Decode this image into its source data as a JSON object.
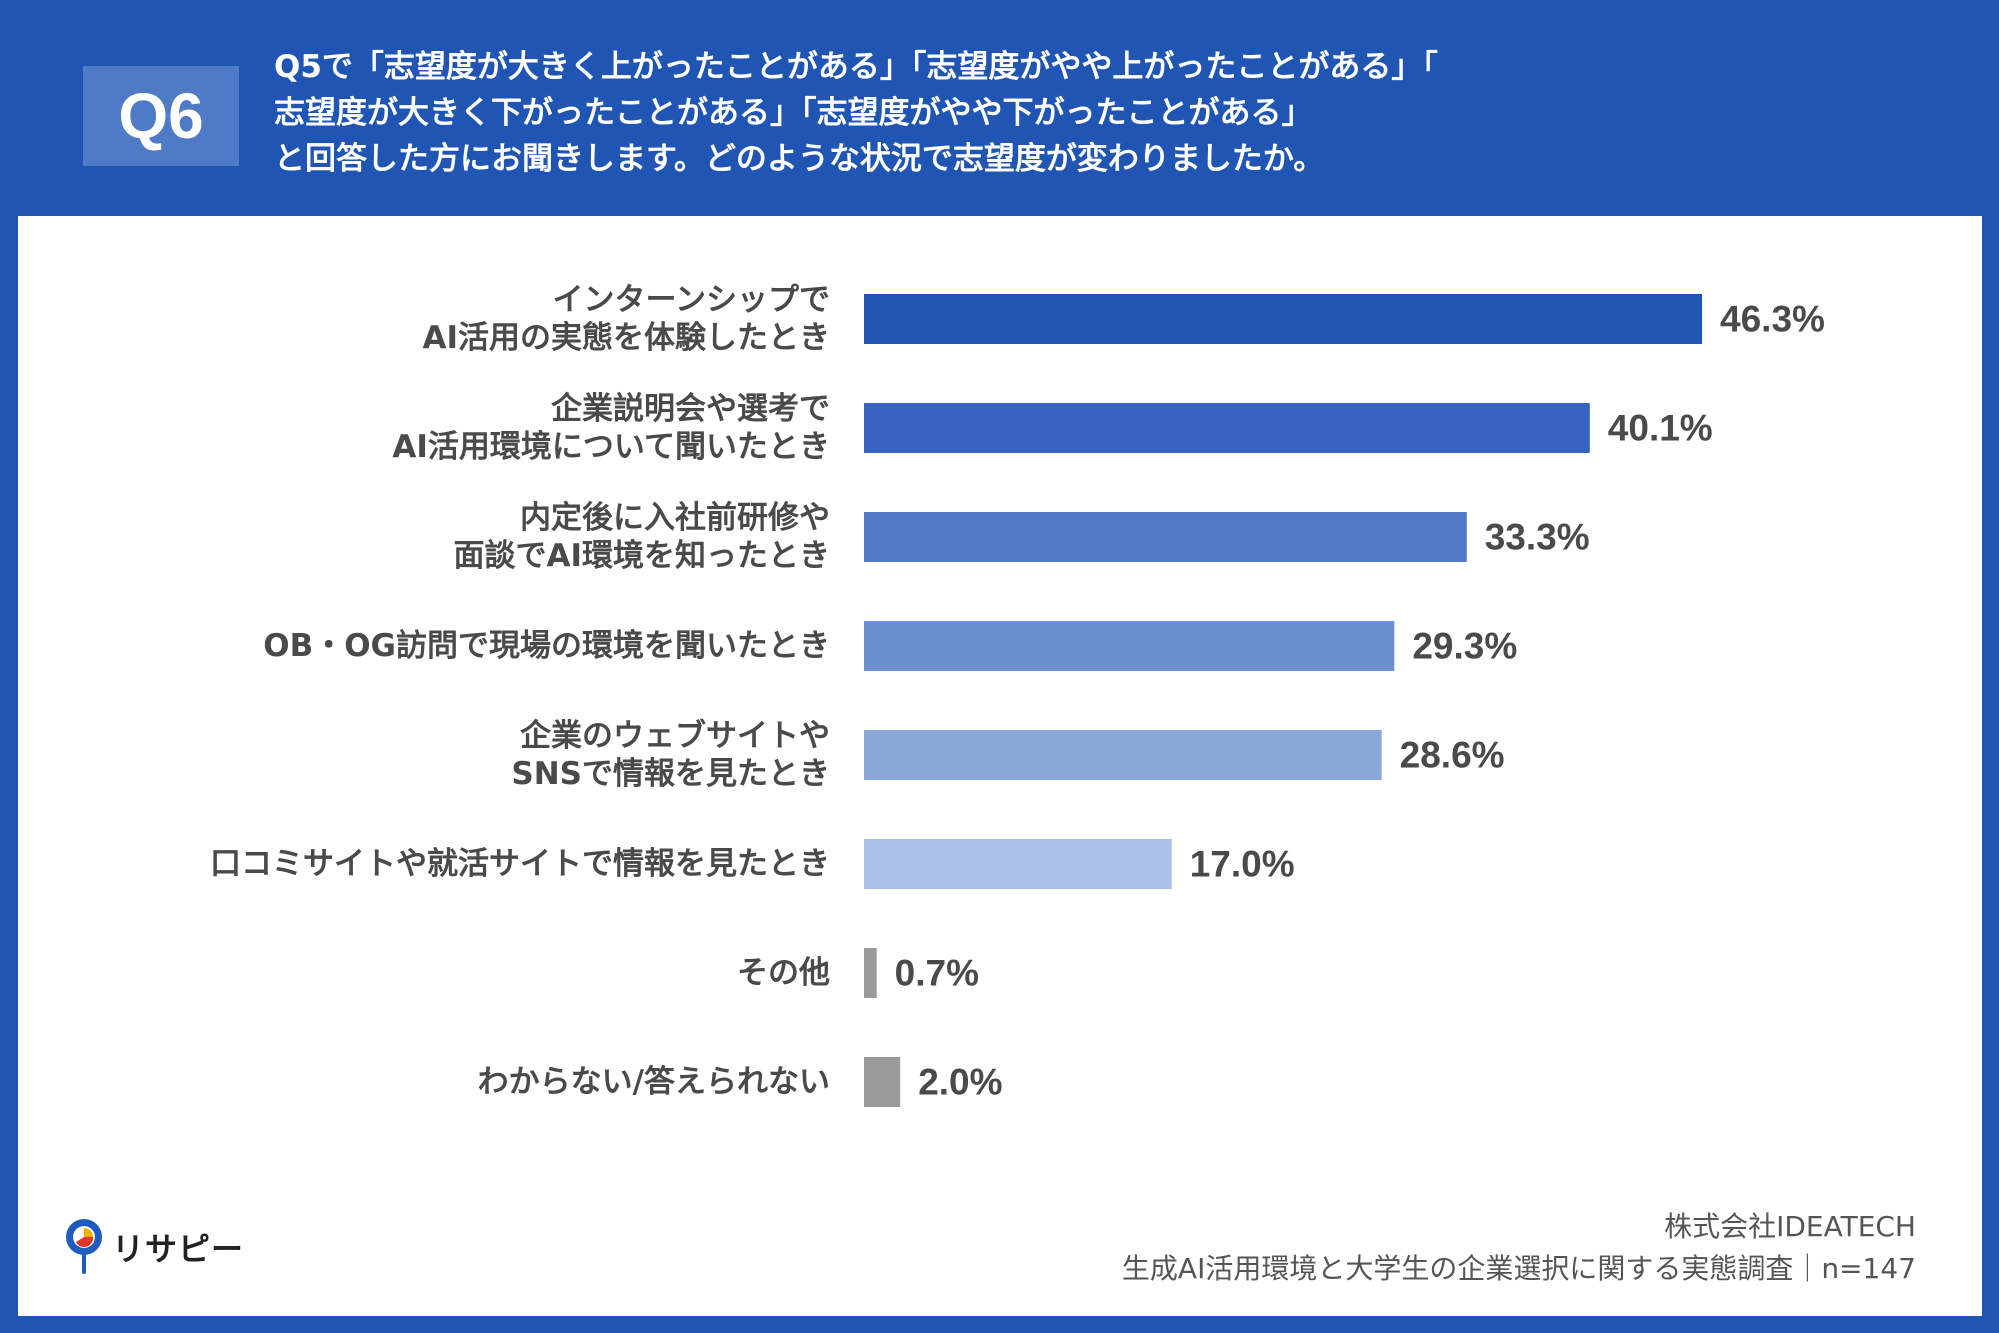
{
  "question": {
    "badge": "Q6",
    "text": "Q5で「志望度が大きく上がったことがある」「志望度がやや上がったことがある」「\n志望度が大きく下がったことがある」「志望度がやや下がったことがある」\nと回答した方にお聞きします。どのような状況で志望度が変わりましたか。"
  },
  "chart_data": {
    "type": "bar",
    "orientation": "horizontal",
    "categories": [
      [
        "インターンシップで",
        "AI活用の実態を体験したとき"
      ],
      [
        "企業説明会や選考で",
        "AI活用環境について聞いたとき"
      ],
      [
        "内定後に入社前研修や",
        "面談でAI環境を知ったとき"
      ],
      [
        "OB・OG訪問で現場の環境を聞いたとき"
      ],
      [
        "企業のウェブサイトや",
        "SNSで情報を見たとき"
      ],
      [
        "口コミサイトや就活サイトで情報を見たとき"
      ],
      [
        "その他"
      ],
      [
        "わからない/答えられない"
      ]
    ],
    "values": [
      46.3,
      40.1,
      33.3,
      29.3,
      28.6,
      17.0,
      0.7,
      2.0
    ],
    "value_labels": [
      "46.3%",
      "40.1%",
      "33.3%",
      "29.3%",
      "28.6%",
      "17.0%",
      "0.7%",
      "2.0%"
    ],
    "bar_colors": [
      "#2155b3",
      "#3563be",
      "#5078c6",
      "#6d8fd0",
      "#8aa7da",
      "#a9c1e6",
      "#9a9a9a",
      "#9a9a9a"
    ],
    "xlim": [
      0,
      100
    ],
    "grid": false,
    "legend": "none"
  },
  "branding": {
    "logo_icon": "location-pin-icon",
    "logo_text": "リサピー"
  },
  "source": {
    "company": "株式会社IDEATECH",
    "survey": "生成AI活用環境と大学生の企業選択に関する実態調査｜n=147"
  }
}
